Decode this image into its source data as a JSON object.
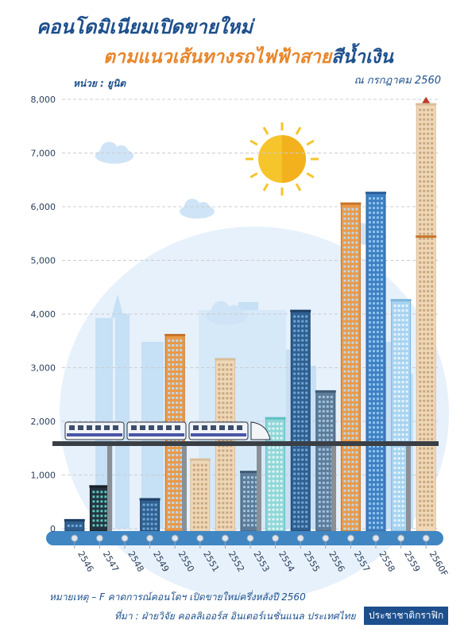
{
  "header": {
    "title_line1": "คอนโดมิเนียมเปิดขายใหม่",
    "title_line2_a": "ตามแนวเส้นทางรถไฟฟ้าสาย",
    "title_line2_b": "สีน้ำเงิน",
    "as_of": "ณ กรกฎาคม 2560",
    "unit": "หน่วย : ยูนิต"
  },
  "footer": {
    "note": "หมายเหตุ – F คาดการณ์คอนโดฯ เปิดขายใหม่ครึ่งหลังปี 2560",
    "source": "ที่มา : ฝ่ายวิจัย คอลลิเออร์ส อินเตอร์เนชั่นแนล ประเทศไทย",
    "brand": "ประชาชาติกราฟิก"
  },
  "colors": {
    "title_blue": "#1d4f8c",
    "title_orange": "#e8862a",
    "grid": "#c9ccd2",
    "ground": "#3f86c3",
    "rail": "#3a3f45"
  },
  "chart_data": {
    "type": "bar",
    "title": "คอนโดมิเนียมเปิดขายใหม่ตามแนวเส้นทางรถไฟฟ้าสายสีน้ำเงิน",
    "ylabel": "หน่วย : ยูนิต",
    "xlabel": "",
    "ylim": [
      0,
      8000
    ],
    "yticks": [
      0,
      1000,
      2000,
      3000,
      4000,
      5000,
      6000,
      7000,
      8000
    ],
    "ytick_labels": [
      "0",
      "1,000",
      "2,000",
      "3,000",
      "4,000",
      "5,000",
      "6,000",
      "7,000",
      "8,000"
    ],
    "grid": true,
    "categories": [
      "2546",
      "2547",
      "2548",
      "2549",
      "2550",
      "2551",
      "2552",
      "2553",
      "2554",
      "2555",
      "2556",
      "2557",
      "2558",
      "2559",
      "2560F"
    ],
    "values": [
      150,
      780,
      0,
      540,
      3600,
      1280,
      3150,
      1050,
      2050,
      4050,
      2550,
      6050,
      6250,
      4250,
      7900
    ],
    "bar_style": [
      "navy",
      "dark",
      "none",
      "navy",
      "orange",
      "beige",
      "beige",
      "steel",
      "teal",
      "navy",
      "steel",
      "orange",
      "blue",
      "sky",
      "beige"
    ],
    "stacked_split": {
      "2560F": 5450
    }
  }
}
